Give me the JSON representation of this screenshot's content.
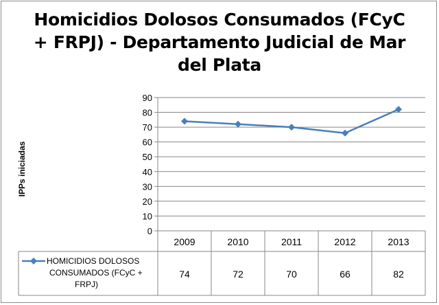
{
  "chart_data": {
    "type": "line",
    "title_lines": [
      "Homicidios Dolosos Consumados (FCyC",
      "+ FRPJ) - Departamento Judicial de Mar",
      "del Plata"
    ],
    "ylabel": "IPPs iniciadas",
    "xlabel": "",
    "categories": [
      "2009",
      "2010",
      "2011",
      "2012",
      "2013"
    ],
    "series": [
      {
        "name_lines": [
          "HOMICIDIOS DOLOSOS",
          "CONSUMADOS (FCyC +",
          "FRPJ)"
        ],
        "values": [
          74,
          72,
          70,
          66,
          82
        ],
        "color": "#4a7ebb"
      }
    ],
    "ylim": [
      0,
      90
    ],
    "yticks": [
      0,
      10,
      20,
      30,
      40,
      50,
      60,
      70,
      80,
      90
    ],
    "grid": true,
    "legend": "data-table-left"
  }
}
